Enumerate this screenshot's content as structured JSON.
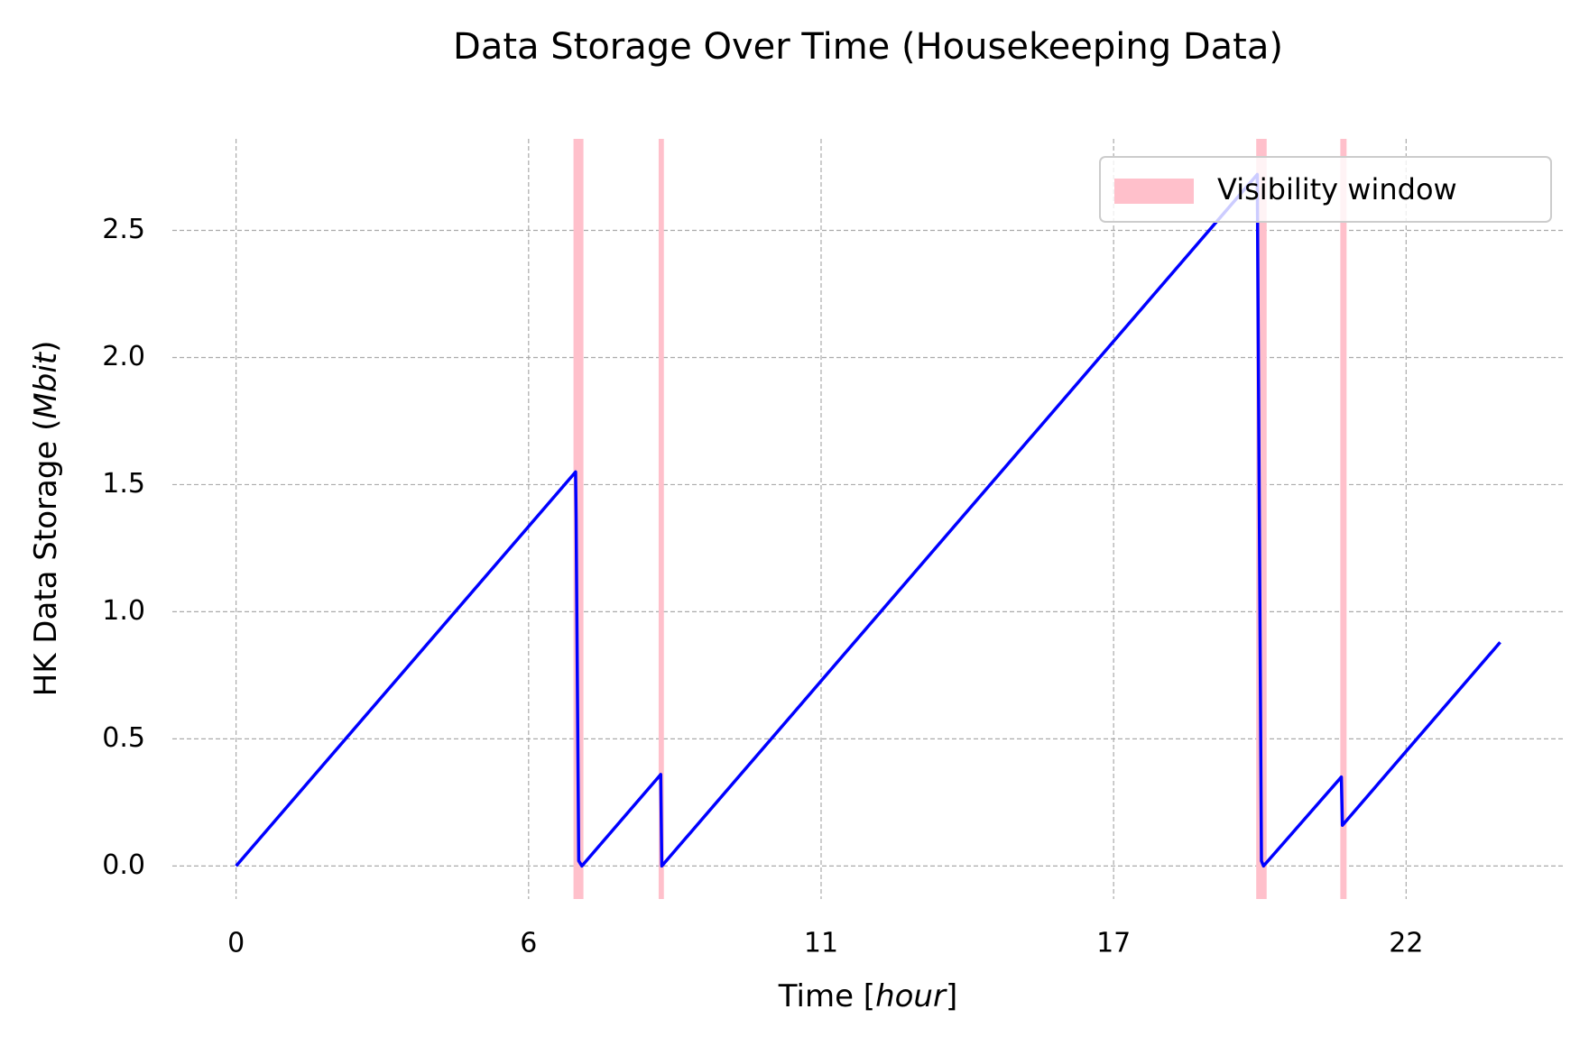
{
  "chart_data": {
    "type": "line",
    "title": "Data Storage Over Time (Housekeeping Data)",
    "xlabel_parts": [
      "Time [",
      "hour",
      "]"
    ],
    "ylabel_parts": [
      "HK Data Storage (",
      "Mbit",
      ")"
    ],
    "x": [
      0,
      6.5,
      6.51,
      6.56,
      6.62,
      8.13,
      8.15,
      19.55,
      19.63,
      19.67,
      21.16,
      21.18,
      24.2
    ],
    "series": [
      {
        "name": "HK Data Storage",
        "color": "#0000ff",
        "values": [
          0,
          1.55,
          1.37,
          0.02,
          0,
          0.36,
          0,
          2.72,
          0.02,
          0,
          0.35,
          0.16,
          0.88
        ]
      }
    ],
    "spans": {
      "name": "Visibility window",
      "color": "#ffc0cb",
      "ranges": [
        [
          6.46,
          6.65
        ],
        [
          8.09,
          8.19
        ],
        [
          19.53,
          19.73
        ],
        [
          21.14,
          21.26
        ]
      ]
    },
    "xlim": [
      -1.22,
      25.4
    ],
    "ylim": [
      -0.13,
      2.86
    ],
    "xticks": [
      0,
      {
        "value": 5.6,
        "label": "6"
      },
      {
        "value": 11.2,
        "label": "11"
      },
      {
        "value": 16.8,
        "label": "17"
      },
      {
        "value": 22.4,
        "label": "22"
      }
    ],
    "yticks": [
      {
        "value": 0,
        "label": "0.0"
      },
      0.5,
      {
        "value": 1,
        "label": "1.0"
      },
      1.5,
      {
        "value": 2,
        "label": "2.0"
      },
      2.5
    ],
    "grid": true,
    "legend": "upper right"
  }
}
